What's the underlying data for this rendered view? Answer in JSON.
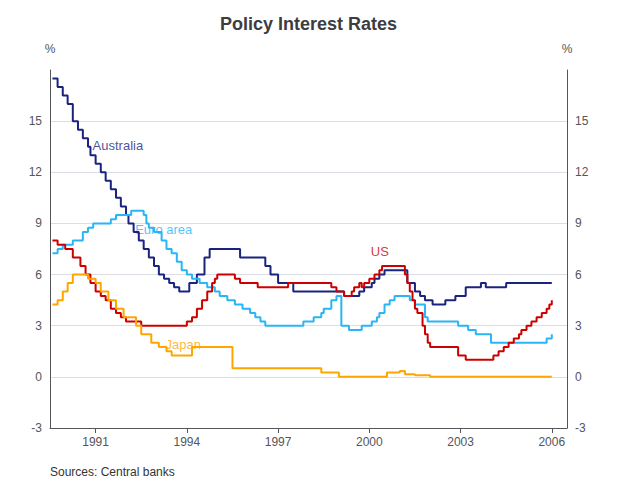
{
  "chart_data": {
    "type": "step",
    "title": "Policy Interest Rates",
    "ylabel": "%",
    "y2label": "%",
    "source": "Sources: Central banks",
    "xlim": [
      1989.5,
      2006.5
    ],
    "xticks": [
      1991,
      1994,
      1997,
      2000,
      2003,
      2006
    ],
    "ylim": [
      -3,
      18
    ],
    "yticks": [
      -3,
      0,
      3,
      6,
      9,
      12,
      15
    ],
    "y2lim": [
      -3,
      18
    ],
    "y2ticks": [
      -3,
      0,
      3,
      6,
      9,
      12,
      15
    ],
    "grid": true,
    "series": [
      {
        "name": "Australia",
        "color": "#1a237e",
        "x": [
          1989.58,
          1989.75,
          1989.92,
          1990.08,
          1990.25,
          1990.42,
          1990.58,
          1990.75,
          1990.83,
          1991.0,
          1991.17,
          1991.33,
          1991.5,
          1991.67,
          1991.83,
          1992.0,
          1992.08,
          1992.25,
          1992.42,
          1992.58,
          1992.75,
          1992.92,
          1993.08,
          1993.25,
          1993.42,
          1993.58,
          1993.75,
          1994.08,
          1994.33,
          1994.58,
          1994.75,
          1995.0,
          1995.5,
          1995.75,
          1996.08,
          1996.42,
          1996.58,
          1996.75,
          1997.0,
          1997.5,
          1998.0,
          1998.5,
          1999.0,
          1999.17,
          1999.67,
          1999.83,
          2000.08,
          2000.17,
          2000.33,
          2000.5,
          2001.0,
          2001.25,
          2001.5,
          2001.67,
          2001.83,
          2002.08,
          2002.5,
          2002.83,
          2003.17,
          2003.67,
          2003.83,
          2004.08,
          2004.5,
          2004.83,
          2005.17,
          2005.58,
          2005.83,
          2006.0
        ],
        "values": [
          17.5,
          17.0,
          16.5,
          16.0,
          15.0,
          14.5,
          14.0,
          13.5,
          13.0,
          12.5,
          12.0,
          11.5,
          11.0,
          10.5,
          10.0,
          9.5,
          9.0,
          8.5,
          8.0,
          7.5,
          7.0,
          6.5,
          6.0,
          5.75,
          5.5,
          5.25,
          5.0,
          5.5,
          6.0,
          7.0,
          7.5,
          7.5,
          7.5,
          7.0,
          7.0,
          7.0,
          6.5,
          6.0,
          5.5,
          5.0,
          5.0,
          5.0,
          5.0,
          4.75,
          5.0,
          5.25,
          5.5,
          5.75,
          6.0,
          6.25,
          6.25,
          5.5,
          5.0,
          4.75,
          4.5,
          4.25,
          4.5,
          4.75,
          5.25,
          5.5,
          5.25,
          5.25,
          5.5,
          5.5,
          5.5,
          5.5,
          5.5,
          5.5
        ]
      },
      {
        "name": "Euro area",
        "color": "#29b6f6",
        "x": [
          1989.58,
          1989.75,
          1989.92,
          1990.25,
          1990.58,
          1990.75,
          1990.92,
          1991.25,
          1991.5,
          1991.67,
          1991.92,
          1992.17,
          1992.42,
          1992.58,
          1992.67,
          1992.75,
          1992.92,
          1993.17,
          1993.33,
          1993.5,
          1993.67,
          1993.83,
          1994.0,
          1994.17,
          1994.42,
          1994.67,
          1994.92,
          1995.08,
          1995.33,
          1995.58,
          1995.83,
          1996.08,
          1996.25,
          1996.42,
          1996.58,
          1996.92,
          1997.25,
          1997.5,
          1997.83,
          1998.17,
          1998.42,
          1998.5,
          1998.75,
          1998.92,
          1999.08,
          1999.33,
          1999.5,
          1999.75,
          1999.92,
          2000.08,
          2000.25,
          2000.33,
          2000.5,
          2000.67,
          2000.83,
          2001.08,
          2001.33,
          2001.5,
          2001.83,
          2001.92,
          2002.08,
          2002.5,
          2002.92,
          2003.25,
          2003.5,
          2004.0,
          2004.5,
          2004.83,
          2005.17,
          2005.5,
          2005.83,
          2006.0
        ],
        "values": [
          7.25,
          7.5,
          7.75,
          8.0,
          8.5,
          8.75,
          9.0,
          9.0,
          9.25,
          9.5,
          9.5,
          9.75,
          9.75,
          9.5,
          9.0,
          8.75,
          8.5,
          8.0,
          7.5,
          7.25,
          6.75,
          6.25,
          6.0,
          5.75,
          5.5,
          5.25,
          5.0,
          4.75,
          4.5,
          4.25,
          4.0,
          3.75,
          3.5,
          3.25,
          3.0,
          3.0,
          3.0,
          3.0,
          3.25,
          3.5,
          3.75,
          4.0,
          4.5,
          4.75,
          3.0,
          2.75,
          2.75,
          3.0,
          3.0,
          3.25,
          3.5,
          3.75,
          4.25,
          4.5,
          4.75,
          4.75,
          4.5,
          4.25,
          3.5,
          3.25,
          3.25,
          3.25,
          3.0,
          2.75,
          2.5,
          2.0,
          2.0,
          2.0,
          2.0,
          2.0,
          2.25,
          2.5
        ]
      },
      {
        "name": "US",
        "color": "#cc0000",
        "x": [
          1989.58,
          1989.75,
          1990.0,
          1990.25,
          1990.5,
          1990.67,
          1990.83,
          1991.0,
          1991.17,
          1991.33,
          1991.5,
          1991.67,
          1991.83,
          1992.0,
          1992.5,
          1992.83,
          1993.0,
          1993.5,
          1994.0,
          1994.17,
          1994.33,
          1994.5,
          1994.67,
          1994.83,
          1994.92,
          1995.0,
          1995.08,
          1995.5,
          1995.58,
          1995.75,
          1995.92,
          1996.33,
          1996.67,
          1997.33,
          1998.33,
          1998.67,
          1998.75,
          1998.92,
          1999.17,
          1999.42,
          1999.5,
          1999.67,
          1999.75,
          1999.83,
          2000.0,
          2000.17,
          2000.33,
          2000.42,
          2000.5,
          2001.0,
          2001.17,
          2001.25,
          2001.33,
          2001.42,
          2001.5,
          2001.58,
          2001.75,
          2001.83,
          2001.92,
          2002.0,
          2002.5,
          2002.83,
          2002.92,
          2003.17,
          2003.5,
          2004.08,
          2004.25,
          2004.42,
          2004.58,
          2004.75,
          2004.92,
          2005.0,
          2005.17,
          2005.33,
          2005.5,
          2005.67,
          2005.83,
          2005.92,
          2006.0
        ],
        "values": [
          8.0,
          7.75,
          7.5,
          7.0,
          6.5,
          6.0,
          5.5,
          5.0,
          4.75,
          4.5,
          4.0,
          3.75,
          3.5,
          3.25,
          3.0,
          3.0,
          3.0,
          3.0,
          3.25,
          3.5,
          4.0,
          4.5,
          5.0,
          5.5,
          5.75,
          6.0,
          6.0,
          6.0,
          5.75,
          5.5,
          5.5,
          5.25,
          5.25,
          5.5,
          5.5,
          5.5,
          5.25,
          5.0,
          4.75,
          5.0,
          5.25,
          5.5,
          5.25,
          5.5,
          5.75,
          6.0,
          6.25,
          6.5,
          6.5,
          6.5,
          6.0,
          5.5,
          5.0,
          4.5,
          4.0,
          3.75,
          3.0,
          2.5,
          2.0,
          1.75,
          1.75,
          1.75,
          1.25,
          1.0,
          1.0,
          1.25,
          1.5,
          1.75,
          2.0,
          2.25,
          2.5,
          2.75,
          3.0,
          3.25,
          3.5,
          3.75,
          4.0,
          4.25,
          4.5
        ]
      },
      {
        "name": "Japan",
        "color": "#ffa500",
        "x": [
          1989.58,
          1989.75,
          1989.92,
          1990.08,
          1990.25,
          1990.5,
          1990.75,
          1991.0,
          1991.17,
          1991.42,
          1991.67,
          1991.92,
          1992.33,
          1992.5,
          1992.83,
          1993.08,
          1993.33,
          1993.5,
          1994.0,
          1994.17,
          1994.5,
          1995.5,
          1995.75,
          1996.0,
          1997.17,
          1998.0,
          1998.42,
          1999.0,
          2000.08,
          2000.58,
          2000.75,
          2001.0,
          2001.17,
          2001.5,
          2001.75,
          2002.0,
          2006.0
        ],
        "values": [
          4.25,
          4.5,
          5.0,
          5.5,
          6.0,
          6.0,
          5.75,
          5.5,
          5.0,
          4.5,
          4.0,
          3.5,
          3.0,
          2.5,
          2.0,
          1.75,
          1.5,
          1.25,
          1.25,
          1.75,
          1.75,
          0.5,
          0.5,
          0.5,
          0.5,
          0.5,
          0.25,
          0.0,
          0.0,
          0.25,
          0.25,
          0.35,
          0.15,
          0.1,
          0.1,
          0.0,
          0.0
        ]
      }
    ],
    "annotations": [
      {
        "text": "Australia",
        "x": 1990.9,
        "y": 13.2,
        "color": "#1a237e"
      },
      {
        "text": "Euro area",
        "x": 1992.3,
        "y": 8.25,
        "color": "#29b6f6"
      },
      {
        "text": "US",
        "x": 2000.05,
        "y": 7.0,
        "color": "#cc0000"
      },
      {
        "text": "Japan",
        "x": 1993.3,
        "y": 1.5,
        "color": "#ffa500"
      }
    ]
  }
}
